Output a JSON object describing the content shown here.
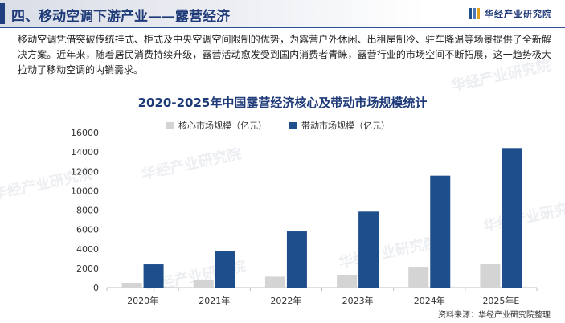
{
  "header": {
    "title": "四、移动空调下游产业——露营经济",
    "brand": "华经产业研究院"
  },
  "intro": "移动空调凭借突破传统挂式、柜式及中央空调空间限制的优势，为露营户外休闲、出租屋制冷、驻车降温等场景提供了全新解决方案。近年来，随着居民消费持续升级，露营活动愈发受到国内消费者青睐，露营行业的市场空间不断拓展，这一趋势极大拉动了移动空调的内销需求。",
  "watermark": "华经产业研究院",
  "source": "资料来源：华经产业研究院整理",
  "colors": {
    "core": "#d4d4d4",
    "driven": "#1f4e8c",
    "accent": "#1e3a78"
  },
  "chart_data": {
    "type": "bar",
    "title": "2020-2025年中国露营经济核心及带动市场规模统计",
    "categories": [
      "2020年",
      "2021年",
      "2022年",
      "2023年",
      "2024年",
      "2025年E"
    ],
    "series": [
      {
        "name": "核心市场规模（亿元）",
        "values": [
          500,
          750,
          1130,
          1330,
          2150,
          2480
        ]
      },
      {
        "name": "带动市场规模（亿元）",
        "values": [
          2400,
          3800,
          5800,
          7850,
          11550,
          14400
        ]
      }
    ],
    "ylim": [
      0,
      16000
    ],
    "yticks": [
      0,
      2000,
      4000,
      6000,
      8000,
      10000,
      12000,
      14000,
      16000
    ],
    "legend_position": "top",
    "grid": false
  }
}
